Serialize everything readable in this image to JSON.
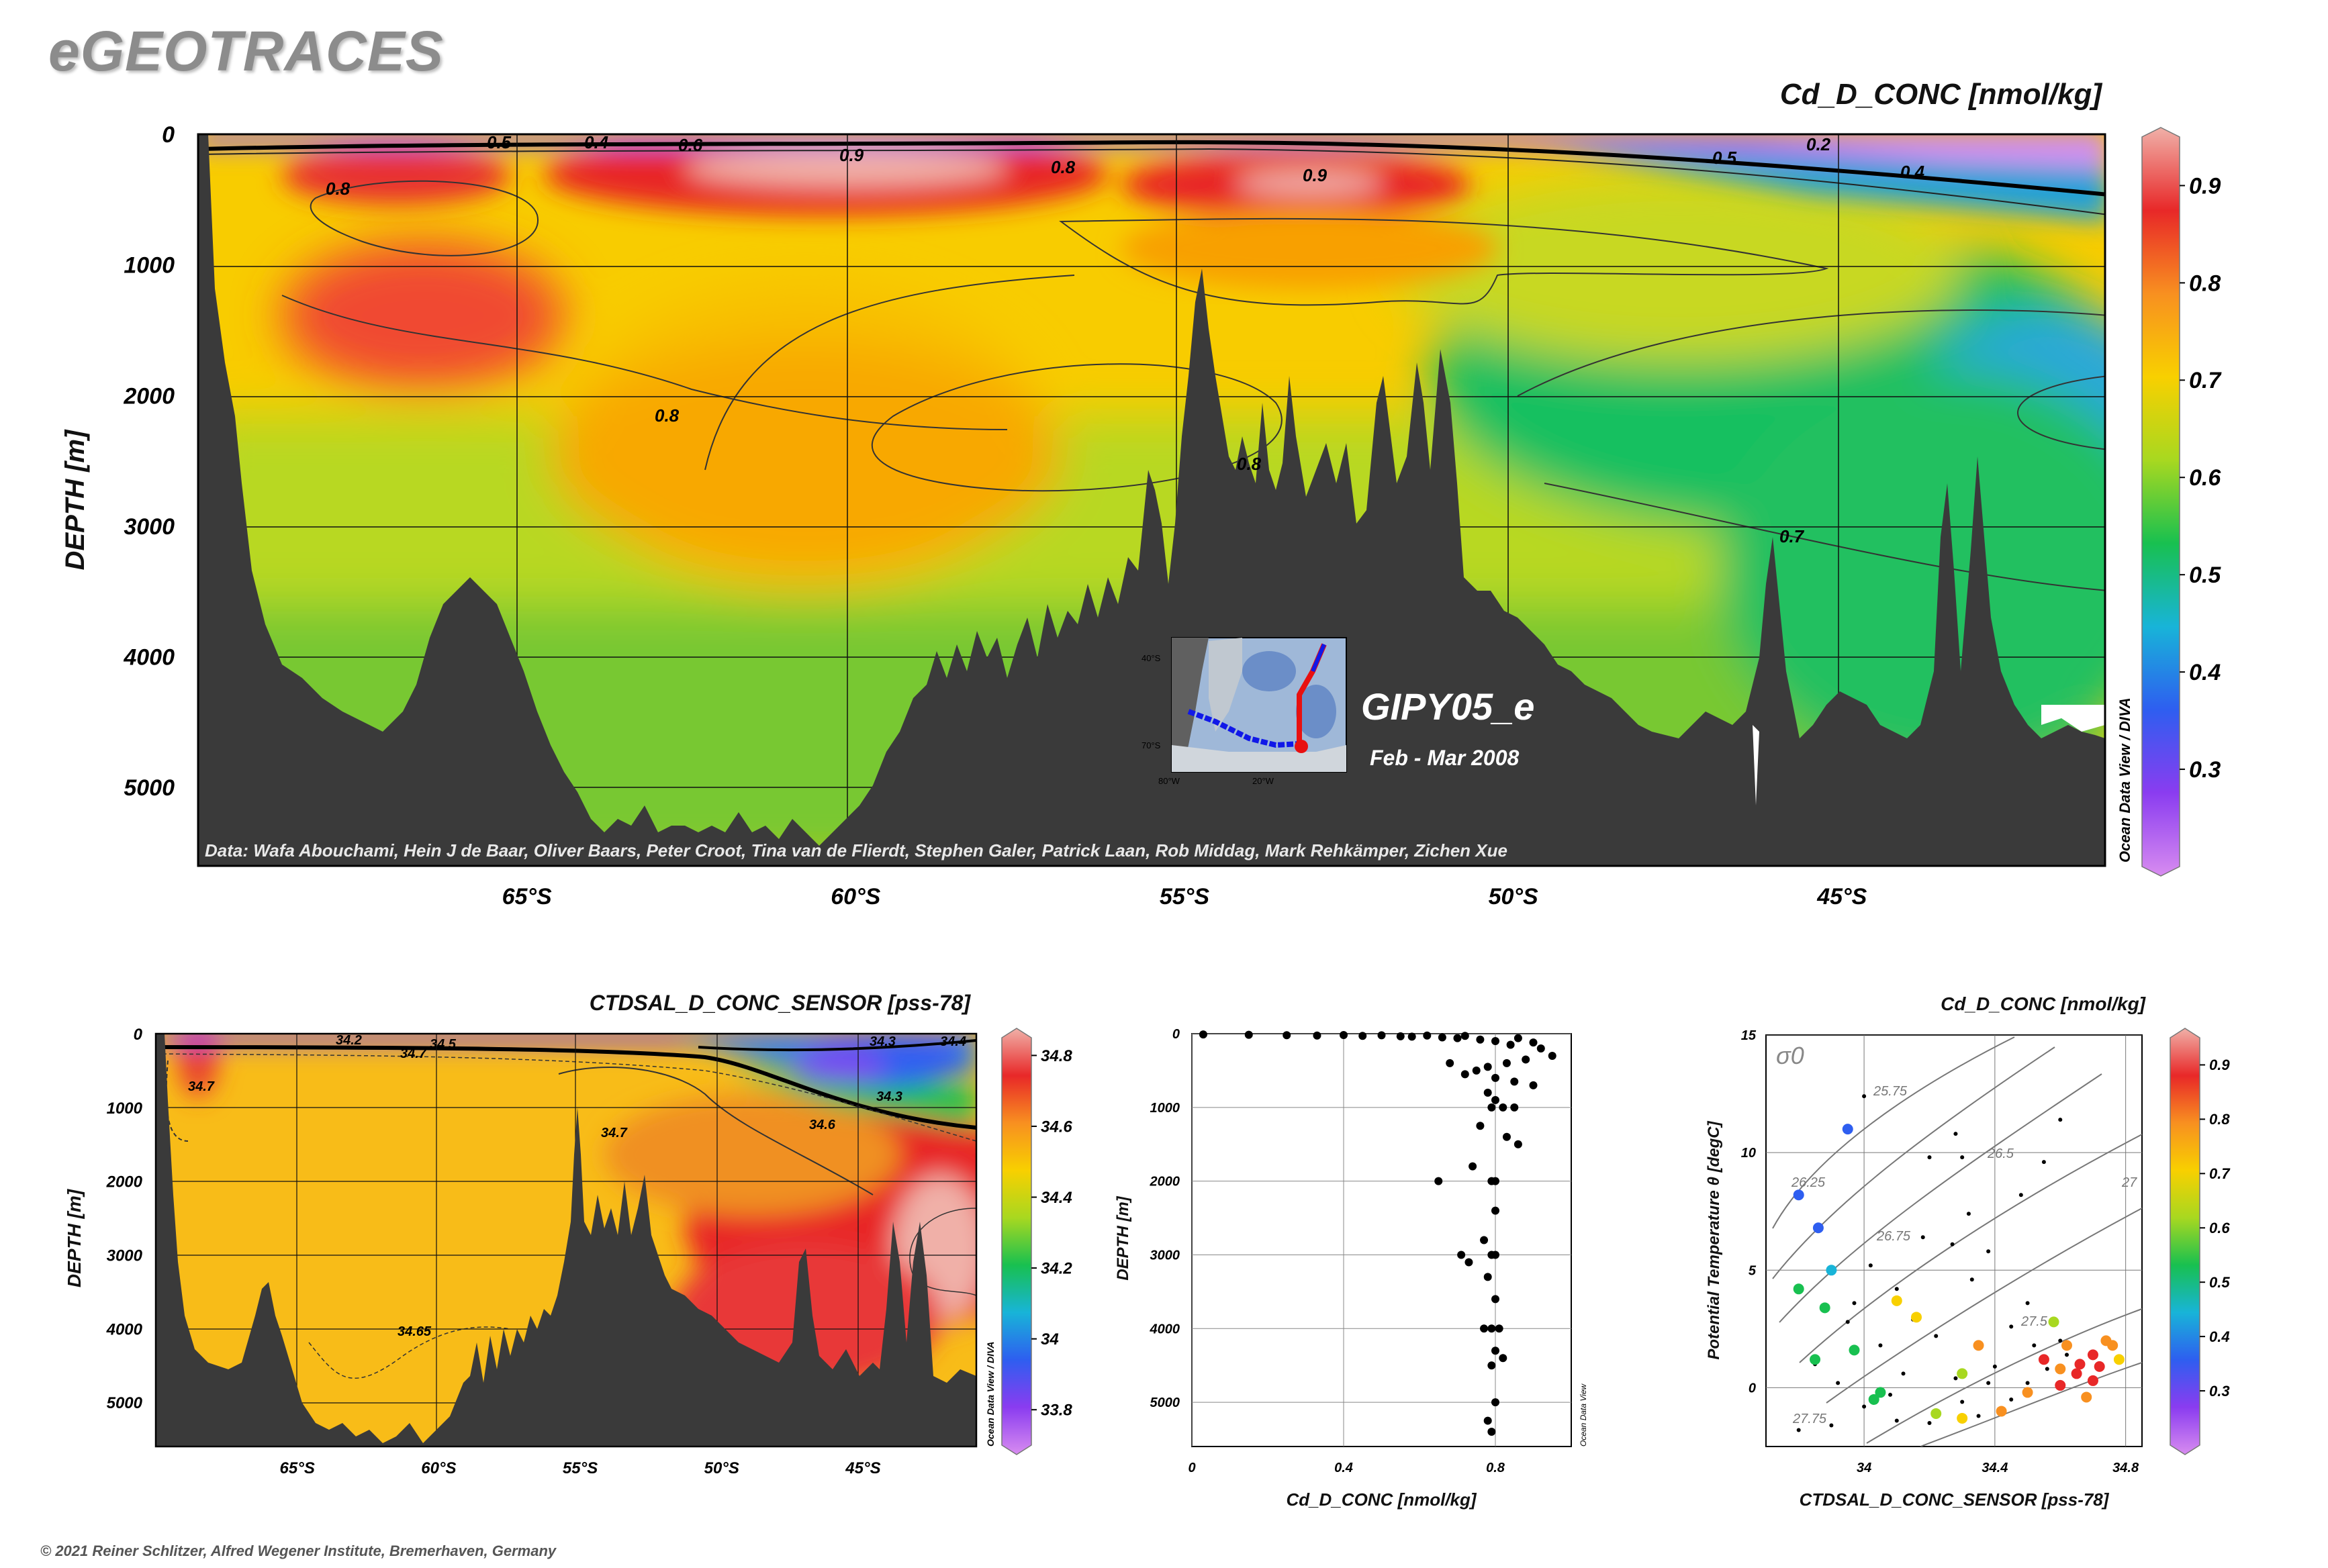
{
  "header": {
    "logo": "eGEOTRACES",
    "copyright": "© 2021 Reiner Schlitzer, Alfred Wegener Institute, Bremerhaven, Germany"
  },
  "colors": {
    "seafloor": "#3a3a3a",
    "colormap": [
      "#d88cf0",
      "#8a3cf0",
      "#2e5ef0",
      "#18b4d8",
      "#18c050",
      "#a8d820",
      "#f8d000",
      "#f89020",
      "#e82828",
      "#f0b0a8"
    ]
  },
  "inset": {
    "section_name": "GIPY05_e",
    "dates": "Feb - Mar 2008",
    "lat_labels": [
      "40°S",
      "70°S"
    ],
    "lon_labels": [
      "80°W",
      "20°W"
    ]
  },
  "chart_data": [
    {
      "type": "heatmap",
      "title": "Cd_D_CONC [nmol/kg]",
      "ylabel": "DEPTH [m]",
      "xlabel": "",
      "xlim": [
        -70,
        -41
      ],
      "ylim": [
        0,
        5600
      ],
      "x_ticks": [
        "65°S",
        "60°S",
        "55°S",
        "50°S",
        "45°S"
      ],
      "y_ticks": [
        "0",
        "1000",
        "2000",
        "3000",
        "4000",
        "5000"
      ],
      "colorbar": {
        "range": [
          0.2,
          0.95
        ],
        "ticks": [
          "0.3",
          "0.4",
          "0.5",
          "0.6",
          "0.7",
          "0.8",
          "0.9"
        ]
      },
      "contour_labels": [
        "0.5",
        "0.4",
        "0.6",
        "0.9",
        "0.8",
        "0.8",
        "0.9",
        "0.5",
        "0.2",
        "0.4",
        "0.8",
        "0.8",
        "0.7"
      ],
      "credit_vertical": "Ocean Data View / DIVA",
      "data_credit": "Data: Wafa Abouchami, Hein J de Baar, Oliver Baars, Peter Croot, Tina van de Flierdt, Stephen Galer, Patrick Laan, Rob Middag, Mark Rehkämper, Zichen Xue"
    },
    {
      "type": "heatmap",
      "title": "CTDSAL_D_CONC_SENSOR [pss-78]",
      "ylabel": "DEPTH [m]",
      "xlabel": "",
      "xlim": [
        -70,
        -41
      ],
      "ylim": [
        0,
        5600
      ],
      "x_ticks": [
        "65°S",
        "60°S",
        "55°S",
        "50°S",
        "45°S"
      ],
      "y_ticks": [
        "0",
        "1000",
        "2000",
        "3000",
        "4000",
        "5000"
      ],
      "colorbar": {
        "range": [
          33.7,
          34.85
        ],
        "ticks": [
          "33.8",
          "34",
          "34.2",
          "34.4",
          "34.6",
          "34.8"
        ]
      },
      "contour_labels": [
        "34.7",
        "34.7",
        "34.3",
        "34.6",
        "34.7",
        "34.65",
        "34.2",
        "34.5",
        "34.4",
        "34.3"
      ],
      "credit_vertical": "Ocean Data View / DIVA"
    },
    {
      "type": "scatter",
      "title": "",
      "xlabel": "Cd_D_CONC [nmol/kg]",
      "ylabel": "DEPTH [m]",
      "xlim": [
        0,
        1.0
      ],
      "ylim": [
        0,
        5600
      ],
      "x_ticks": [
        "0",
        "0.4",
        "0.8"
      ],
      "y_ticks": [
        "0",
        "1000",
        "2000",
        "3000",
        "4000",
        "5000"
      ],
      "credit_vertical": "Ocean Data View",
      "points": [
        [
          0.03,
          10
        ],
        [
          0.15,
          15
        ],
        [
          0.25,
          20
        ],
        [
          0.33,
          25
        ],
        [
          0.4,
          18
        ],
        [
          0.45,
          30
        ],
        [
          0.5,
          22
        ],
        [
          0.55,
          35
        ],
        [
          0.58,
          40
        ],
        [
          0.62,
          25
        ],
        [
          0.66,
          50
        ],
        [
          0.7,
          60
        ],
        [
          0.72,
          30
        ],
        [
          0.76,
          80
        ],
        [
          0.8,
          100
        ],
        [
          0.84,
          150
        ],
        [
          0.86,
          60
        ],
        [
          0.9,
          120
        ],
        [
          0.92,
          200
        ],
        [
          0.95,
          300
        ],
        [
          0.88,
          350
        ],
        [
          0.83,
          400
        ],
        [
          0.78,
          450
        ],
        [
          0.75,
          500
        ],
        [
          0.68,
          400
        ],
        [
          0.72,
          550
        ],
        [
          0.8,
          600
        ],
        [
          0.85,
          650
        ],
        [
          0.9,
          700
        ],
        [
          0.78,
          800
        ],
        [
          0.8,
          900
        ],
        [
          0.79,
          1000
        ],
        [
          0.82,
          1000
        ],
        [
          0.85,
          1000
        ],
        [
          0.76,
          1250
        ],
        [
          0.83,
          1400
        ],
        [
          0.86,
          1500
        ],
        [
          0.74,
          1800
        ],
        [
          0.79,
          2000
        ],
        [
          0.8,
          2000
        ],
        [
          0.65,
          2000
        ],
        [
          0.8,
          2400
        ],
        [
          0.77,
          2800
        ],
        [
          0.71,
          3000
        ],
        [
          0.79,
          3000
        ],
        [
          0.8,
          3000
        ],
        [
          0.73,
          3100
        ],
        [
          0.78,
          3300
        ],
        [
          0.8,
          3600
        ],
        [
          0.79,
          4000
        ],
        [
          0.77,
          4000
        ],
        [
          0.81,
          4000
        ],
        [
          0.8,
          4300
        ],
        [
          0.79,
          4500
        ],
        [
          0.82,
          4400
        ],
        [
          0.8,
          5000
        ],
        [
          0.78,
          5250
        ],
        [
          0.79,
          5400
        ]
      ]
    },
    {
      "type": "scatter",
      "title": "Cd_D_CONC [nmol/kg]",
      "xlabel": "CTDSAL_D_CONC_SENSOR [pss-78]",
      "ylabel": "Potential Temperature θ [degC]",
      "xlim": [
        33.7,
        34.85
      ],
      "ylim": [
        -2.5,
        15
      ],
      "x_ticks": [
        "34",
        "34.4",
        "34.8"
      ],
      "y_ticks": [
        "0",
        "5",
        "10",
        "15"
      ],
      "sigma_label": "σ0",
      "isopycnal_labels": [
        "25.75",
        "26.25",
        "26.5",
        "26.75",
        "27",
        "27.5",
        "27.75"
      ],
      "colorbar": {
        "range": [
          0.2,
          0.95
        ],
        "ticks": [
          "0.3",
          "0.4",
          "0.5",
          "0.6",
          "0.7",
          "0.8",
          "0.9"
        ]
      },
      "colored_points": [
        [
          33.8,
          8.2,
          0.35
        ],
        [
          33.86,
          6.8,
          0.4
        ],
        [
          33.95,
          11.0,
          0.35
        ],
        [
          33.9,
          5.0,
          0.45
        ],
        [
          33.8,
          4.2,
          0.5
        ],
        [
          33.88,
          3.4,
          0.55
        ],
        [
          34.1,
          3.7,
          0.7
        ],
        [
          34.16,
          3.0,
          0.7
        ],
        [
          33.97,
          1.6,
          0.5
        ],
        [
          34.05,
          -0.2,
          0.5
        ],
        [
          34.03,
          -0.5,
          0.55
        ],
        [
          34.22,
          -1.1,
          0.65
        ],
        [
          34.3,
          0.6,
          0.6
        ],
        [
          34.42,
          -1.0,
          0.8
        ],
        [
          34.3,
          -1.3,
          0.7
        ],
        [
          34.55,
          1.2,
          0.85
        ],
        [
          34.6,
          0.8,
          0.8
        ],
        [
          34.65,
          0.6,
          0.85
        ],
        [
          34.7,
          1.4,
          0.9
        ],
        [
          34.72,
          0.9,
          0.85
        ],
        [
          34.68,
          -0.4,
          0.82
        ],
        [
          34.74,
          2.0,
          0.75
        ],
        [
          34.76,
          1.8,
          0.8
        ],
        [
          34.7,
          0.3,
          0.88
        ],
        [
          34.62,
          1.8,
          0.8
        ],
        [
          34.58,
          2.8,
          0.6
        ],
        [
          34.35,
          1.8,
          0.75
        ],
        [
          34.5,
          -0.2,
          0.75
        ],
        [
          34.78,
          1.2,
          0.7
        ],
        [
          33.85,
          1.2,
          0.5
        ],
        [
          34.6,
          0.1,
          0.85
        ],
        [
          34.66,
          1.0,
          0.9
        ]
      ],
      "black_points": [
        [
          33.95,
          2.8
        ],
        [
          34.02,
          5.2
        ],
        [
          34.1,
          4.2
        ],
        [
          34.18,
          6.4
        ],
        [
          34.3,
          9.8
        ],
        [
          34.32,
          7.4
        ],
        [
          34.38,
          5.8
        ],
        [
          34.48,
          8.2
        ],
        [
          34.55,
          9.6
        ],
        [
          34.6,
          11.4
        ],
        [
          33.85,
          1.0
        ],
        [
          33.92,
          0.2
        ],
        [
          34.0,
          -0.8
        ],
        [
          34.1,
          -1.4
        ],
        [
          34.2,
          -1.5
        ],
        [
          34.35,
          -1.2
        ],
        [
          34.45,
          -0.5
        ],
        [
          34.5,
          0.2
        ],
        [
          34.56,
          0.8
        ],
        [
          34.62,
          1.4
        ],
        [
          34.28,
          0.4
        ],
        [
          34.4,
          0.9
        ],
        [
          34.45,
          2.6
        ],
        [
          34.5,
          3.6
        ],
        [
          33.9,
          -1.6
        ],
        [
          33.8,
          -1.8
        ],
        [
          34.22,
          2.2
        ],
        [
          34.12,
          0.6
        ],
        [
          34.05,
          1.8
        ],
        [
          34.2,
          9.8
        ],
        [
          34.28,
          10.8
        ],
        [
          34.0,
          12.4
        ],
        [
          33.97,
          3.6
        ],
        [
          34.15,
          2.9
        ],
        [
          34.33,
          4.6
        ],
        [
          34.27,
          6.1
        ],
        [
          34.52,
          1.8
        ],
        [
          34.08,
          -0.3
        ],
        [
          34.3,
          -0.6
        ],
        [
          34.42,
          -0.9
        ],
        [
          34.38,
          0.2
        ],
        [
          34.6,
          2.0
        ]
      ]
    }
  ]
}
